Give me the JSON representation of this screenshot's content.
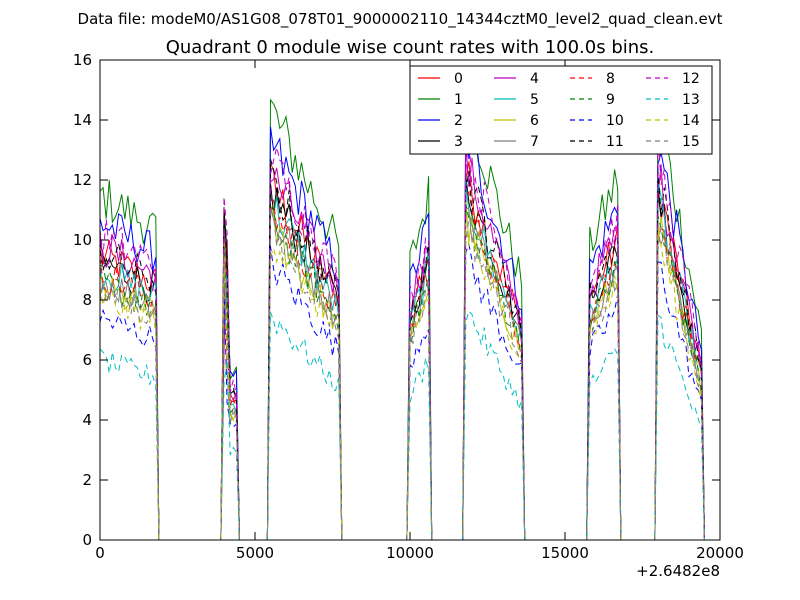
{
  "supertitle": "Data file: modeM0/AS1G08_078T01_9000002110_14344cztM0_level2_quad_clean.evt",
  "chart_data": {
    "type": "line",
    "title": "Quadrant 0 module wise count rates with 100.0s bins.",
    "xlabel": "",
    "ylabel": "",
    "x_offset_label": "+2.6482e8",
    "xlim": [
      0,
      20000
    ],
    "ylim": [
      0,
      16
    ],
    "xticks": [
      "0",
      "5000",
      "10000",
      "15000",
      "20000"
    ],
    "yticks": [
      "0",
      "2",
      "4",
      "6",
      "8",
      "10",
      "12",
      "14",
      "16"
    ],
    "grid": false,
    "legend_position": "upper-right",
    "legend_columns": 4,
    "series": [
      {
        "name": "0",
        "color": "#ff0000",
        "dash": "solid",
        "level": 9.5
      },
      {
        "name": "1",
        "color": "#008000",
        "dash": "solid",
        "level": 11.5
      },
      {
        "name": "2",
        "color": "#0000ff",
        "dash": "solid",
        "level": 10.6
      },
      {
        "name": "3",
        "color": "#000000",
        "dash": "solid",
        "level": 9.3
      },
      {
        "name": "4",
        "color": "#bf00bf",
        "dash": "solid",
        "level": 9.8
      },
      {
        "name": "5",
        "color": "#00bfbf",
        "dash": "solid",
        "level": 9.0
      },
      {
        "name": "6",
        "color": "#bfbf00",
        "dash": "solid",
        "level": 8.4
      },
      {
        "name": "7",
        "color": "#808080",
        "dash": "solid",
        "level": 8.7
      },
      {
        "name": "8",
        "color": "#ff0000",
        "dash": "dashed",
        "level": 8.9
      },
      {
        "name": "9",
        "color": "#008000",
        "dash": "dashed",
        "level": 8.6
      },
      {
        "name": "10",
        "color": "#0000ff",
        "dash": "dashed",
        "level": 7.4
      },
      {
        "name": "11",
        "color": "#000000",
        "dash": "dashed",
        "level": 9.6
      },
      {
        "name": "12",
        "color": "#bf00bf",
        "dash": "dashed",
        "level": 10.2
      },
      {
        "name": "13",
        "color": "#00bfbf",
        "dash": "dashed",
        "level": 6.0
      },
      {
        "name": "14",
        "color": "#bfbf00",
        "dash": "dashed",
        "level": 8.1
      },
      {
        "name": "15",
        "color": "#808080",
        "dash": "dashed",
        "level": 8.3
      }
    ],
    "segments": [
      {
        "x_start": 0,
        "x_end": 1800,
        "shape": "decay",
        "start_factor": 1.0,
        "end_factor": 0.9
      },
      {
        "x_start": 4000,
        "x_end": 4400,
        "shape": "spike",
        "start_factor": 1.0,
        "end_factor": 0.5
      },
      {
        "x_start": 5500,
        "x_end": 7700,
        "shape": "decay",
        "start_factor": 1.25,
        "end_factor": 0.85
      },
      {
        "x_start": 10000,
        "x_end": 10600,
        "shape": "rise",
        "start_factor": 0.8,
        "end_factor": 1.0
      },
      {
        "x_start": 11800,
        "x_end": 13600,
        "shape": "decay",
        "start_factor": 1.28,
        "end_factor": 0.75
      },
      {
        "x_start": 15800,
        "x_end": 16700,
        "shape": "rise",
        "start_factor": 0.85,
        "end_factor": 1.05
      },
      {
        "x_start": 18000,
        "x_end": 19400,
        "shape": "decay",
        "start_factor": 1.25,
        "end_factor": 0.6
      }
    ]
  }
}
